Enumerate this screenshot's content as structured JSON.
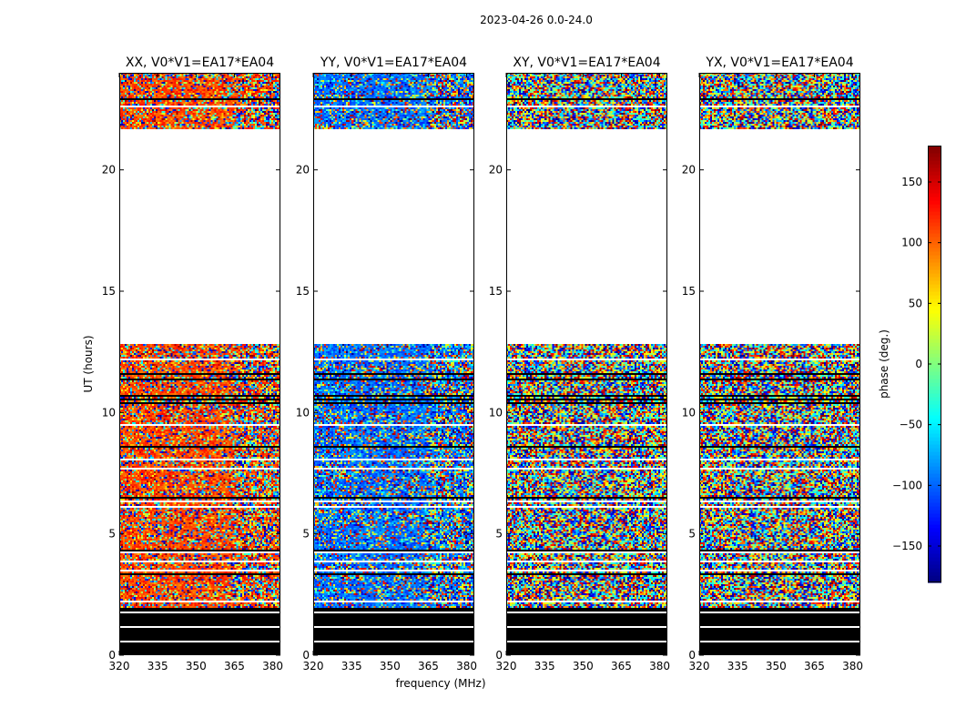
{
  "figure": {
    "suptitle": "2023-04-26 0.0-24.0",
    "xlabel": "frequency (MHz)",
    "ylabel": "UT (hours)"
  },
  "chart_data": {
    "type": "heatmap",
    "x": {
      "label": "frequency (MHz)",
      "range": [
        320,
        383
      ],
      "ticks": [
        320,
        335,
        350,
        365,
        380
      ]
    },
    "y": {
      "label": "UT (hours)",
      "range": [
        0,
        24
      ],
      "ticks": [
        0,
        5,
        10,
        15,
        20
      ]
    },
    "colorbar": {
      "label": "phase (deg.)",
      "range": [
        -180,
        180
      ],
      "ticks": [
        -150,
        -100,
        -50,
        0,
        50,
        100,
        150
      ],
      "tick_labels": [
        "−150",
        "−100",
        "−50",
        "0",
        "50",
        "100",
        "150"
      ],
      "colormap": "jet"
    },
    "data_gaps_hours": [
      [
        12.8,
        21.7
      ],
      [
        22.55,
        22.65
      ]
    ],
    "flagged_black_hours": [
      [
        0.0,
        1.95
      ]
    ],
    "panels": [
      {
        "title": "XX, V0*V1=EA17*EA04",
        "polarization": "XX",
        "dominant_phase_deg": 110,
        "coherence": 0.55
      },
      {
        "title": "YY, V0*V1=EA17*EA04",
        "polarization": "YY",
        "dominant_phase_deg": -95,
        "coherence": 0.55
      },
      {
        "title": "XY, V0*V1=EA17*EA04",
        "polarization": "XY",
        "dominant_phase_deg": 0,
        "coherence": 0.0
      },
      {
        "title": "YX, V0*V1=EA17*EA04",
        "polarization": "YX",
        "dominant_phase_deg": 0,
        "coherence": 0.0
      }
    ]
  }
}
